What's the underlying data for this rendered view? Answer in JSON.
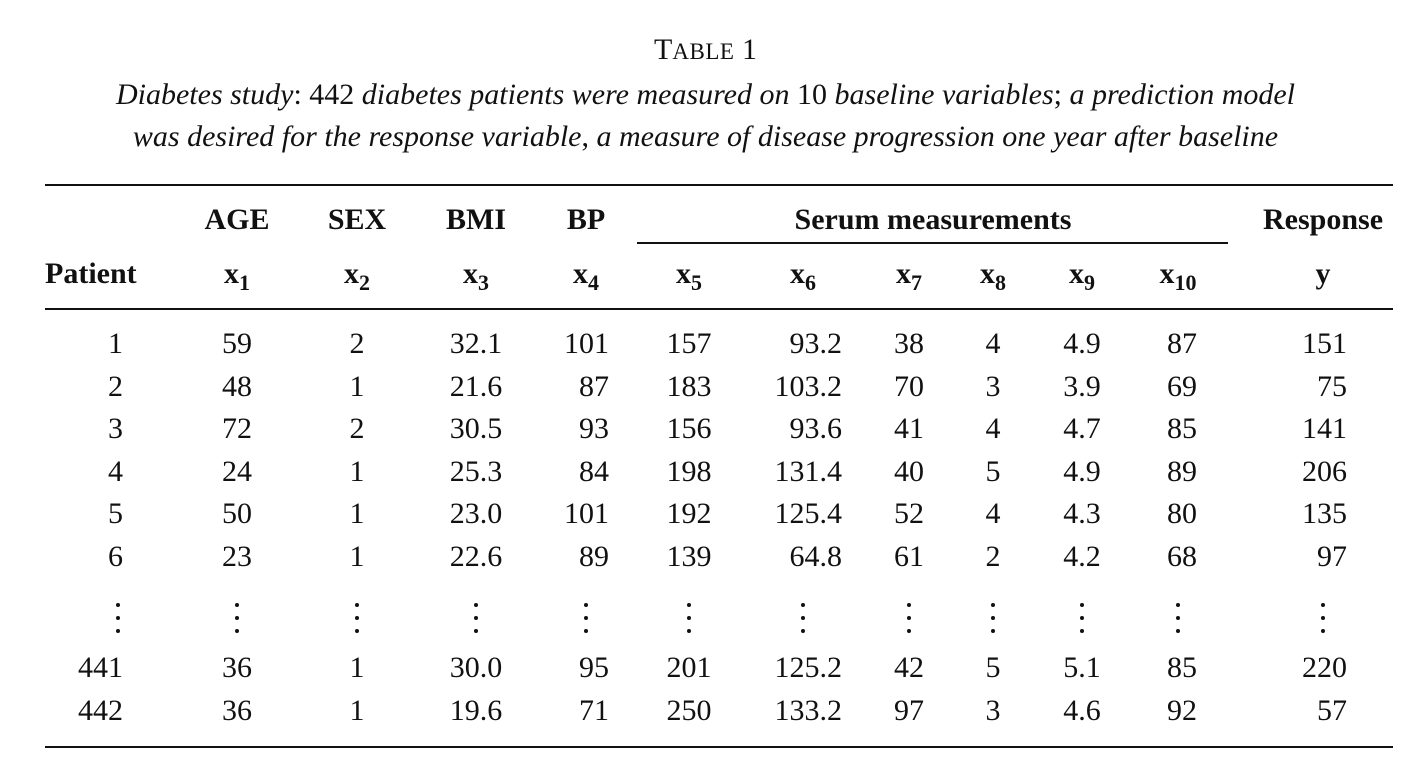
{
  "table": {
    "label_first": "T",
    "label_rest": "ABLE",
    "number": "1",
    "caption_lead": "Diabetes study",
    "caption_sep1": ": 442 ",
    "caption_mid1": "diabetes patients were measured on",
    "caption_num": " 10 ",
    "caption_mid2": "baseline variables",
    "caption_sep2": "; ",
    "caption_mid3": "a prediction model",
    "caption_line2a": "was desired for the response variable",
    "caption_sep3": ", ",
    "caption_line2b": "a measure of disease progression one year after baseline"
  },
  "headers": {
    "patient": "Patient",
    "age": "AGE",
    "sex": "SEX",
    "bmi": "BMI",
    "bp": "BP",
    "serum": "Serum measurements",
    "response": "Response"
  },
  "symbols": [
    {
      "base": "x",
      "sub": "1"
    },
    {
      "base": "x",
      "sub": "2"
    },
    {
      "base": "x",
      "sub": "3"
    },
    {
      "base": "x",
      "sub": "4"
    },
    {
      "base": "x",
      "sub": "5"
    },
    {
      "base": "x",
      "sub": "6"
    },
    {
      "base": "x",
      "sub": "7"
    },
    {
      "base": "x",
      "sub": "8"
    },
    {
      "base": "x",
      "sub": "9"
    },
    {
      "base": "x",
      "sub": "10"
    },
    {
      "base": "y",
      "sub": ""
    }
  ],
  "rows": [
    [
      "1",
      "59",
      "2",
      "32.1",
      "101",
      "157",
      "93.2",
      "38",
      "4",
      "4.9",
      "87",
      "151"
    ],
    [
      "2",
      "48",
      "1",
      "21.6",
      "87",
      "183",
      "103.2",
      "70",
      "3",
      "3.9",
      "69",
      "75"
    ],
    [
      "3",
      "72",
      "2",
      "30.5",
      "93",
      "156",
      "93.6",
      "41",
      "4",
      "4.7",
      "85",
      "141"
    ],
    [
      "4",
      "24",
      "1",
      "25.3",
      "84",
      "198",
      "131.4",
      "40",
      "5",
      "4.9",
      "89",
      "206"
    ],
    [
      "5",
      "50",
      "1",
      "23.0",
      "101",
      "192",
      "125.4",
      "52",
      "4",
      "4.3",
      "80",
      "135"
    ],
    [
      "6",
      "23",
      "1",
      "22.6",
      "89",
      "139",
      "64.8",
      "61",
      "2",
      "4.2",
      "68",
      "97"
    ]
  ],
  "tail_rows": [
    [
      "441",
      "36",
      "1",
      "30.0",
      "95",
      "201",
      "125.2",
      "42",
      "5",
      "5.1",
      "85",
      "220"
    ],
    [
      "442",
      "36",
      "1",
      "19.6",
      "71",
      "250",
      "133.2",
      "97",
      "3",
      "4.6",
      "92",
      "57"
    ]
  ]
}
